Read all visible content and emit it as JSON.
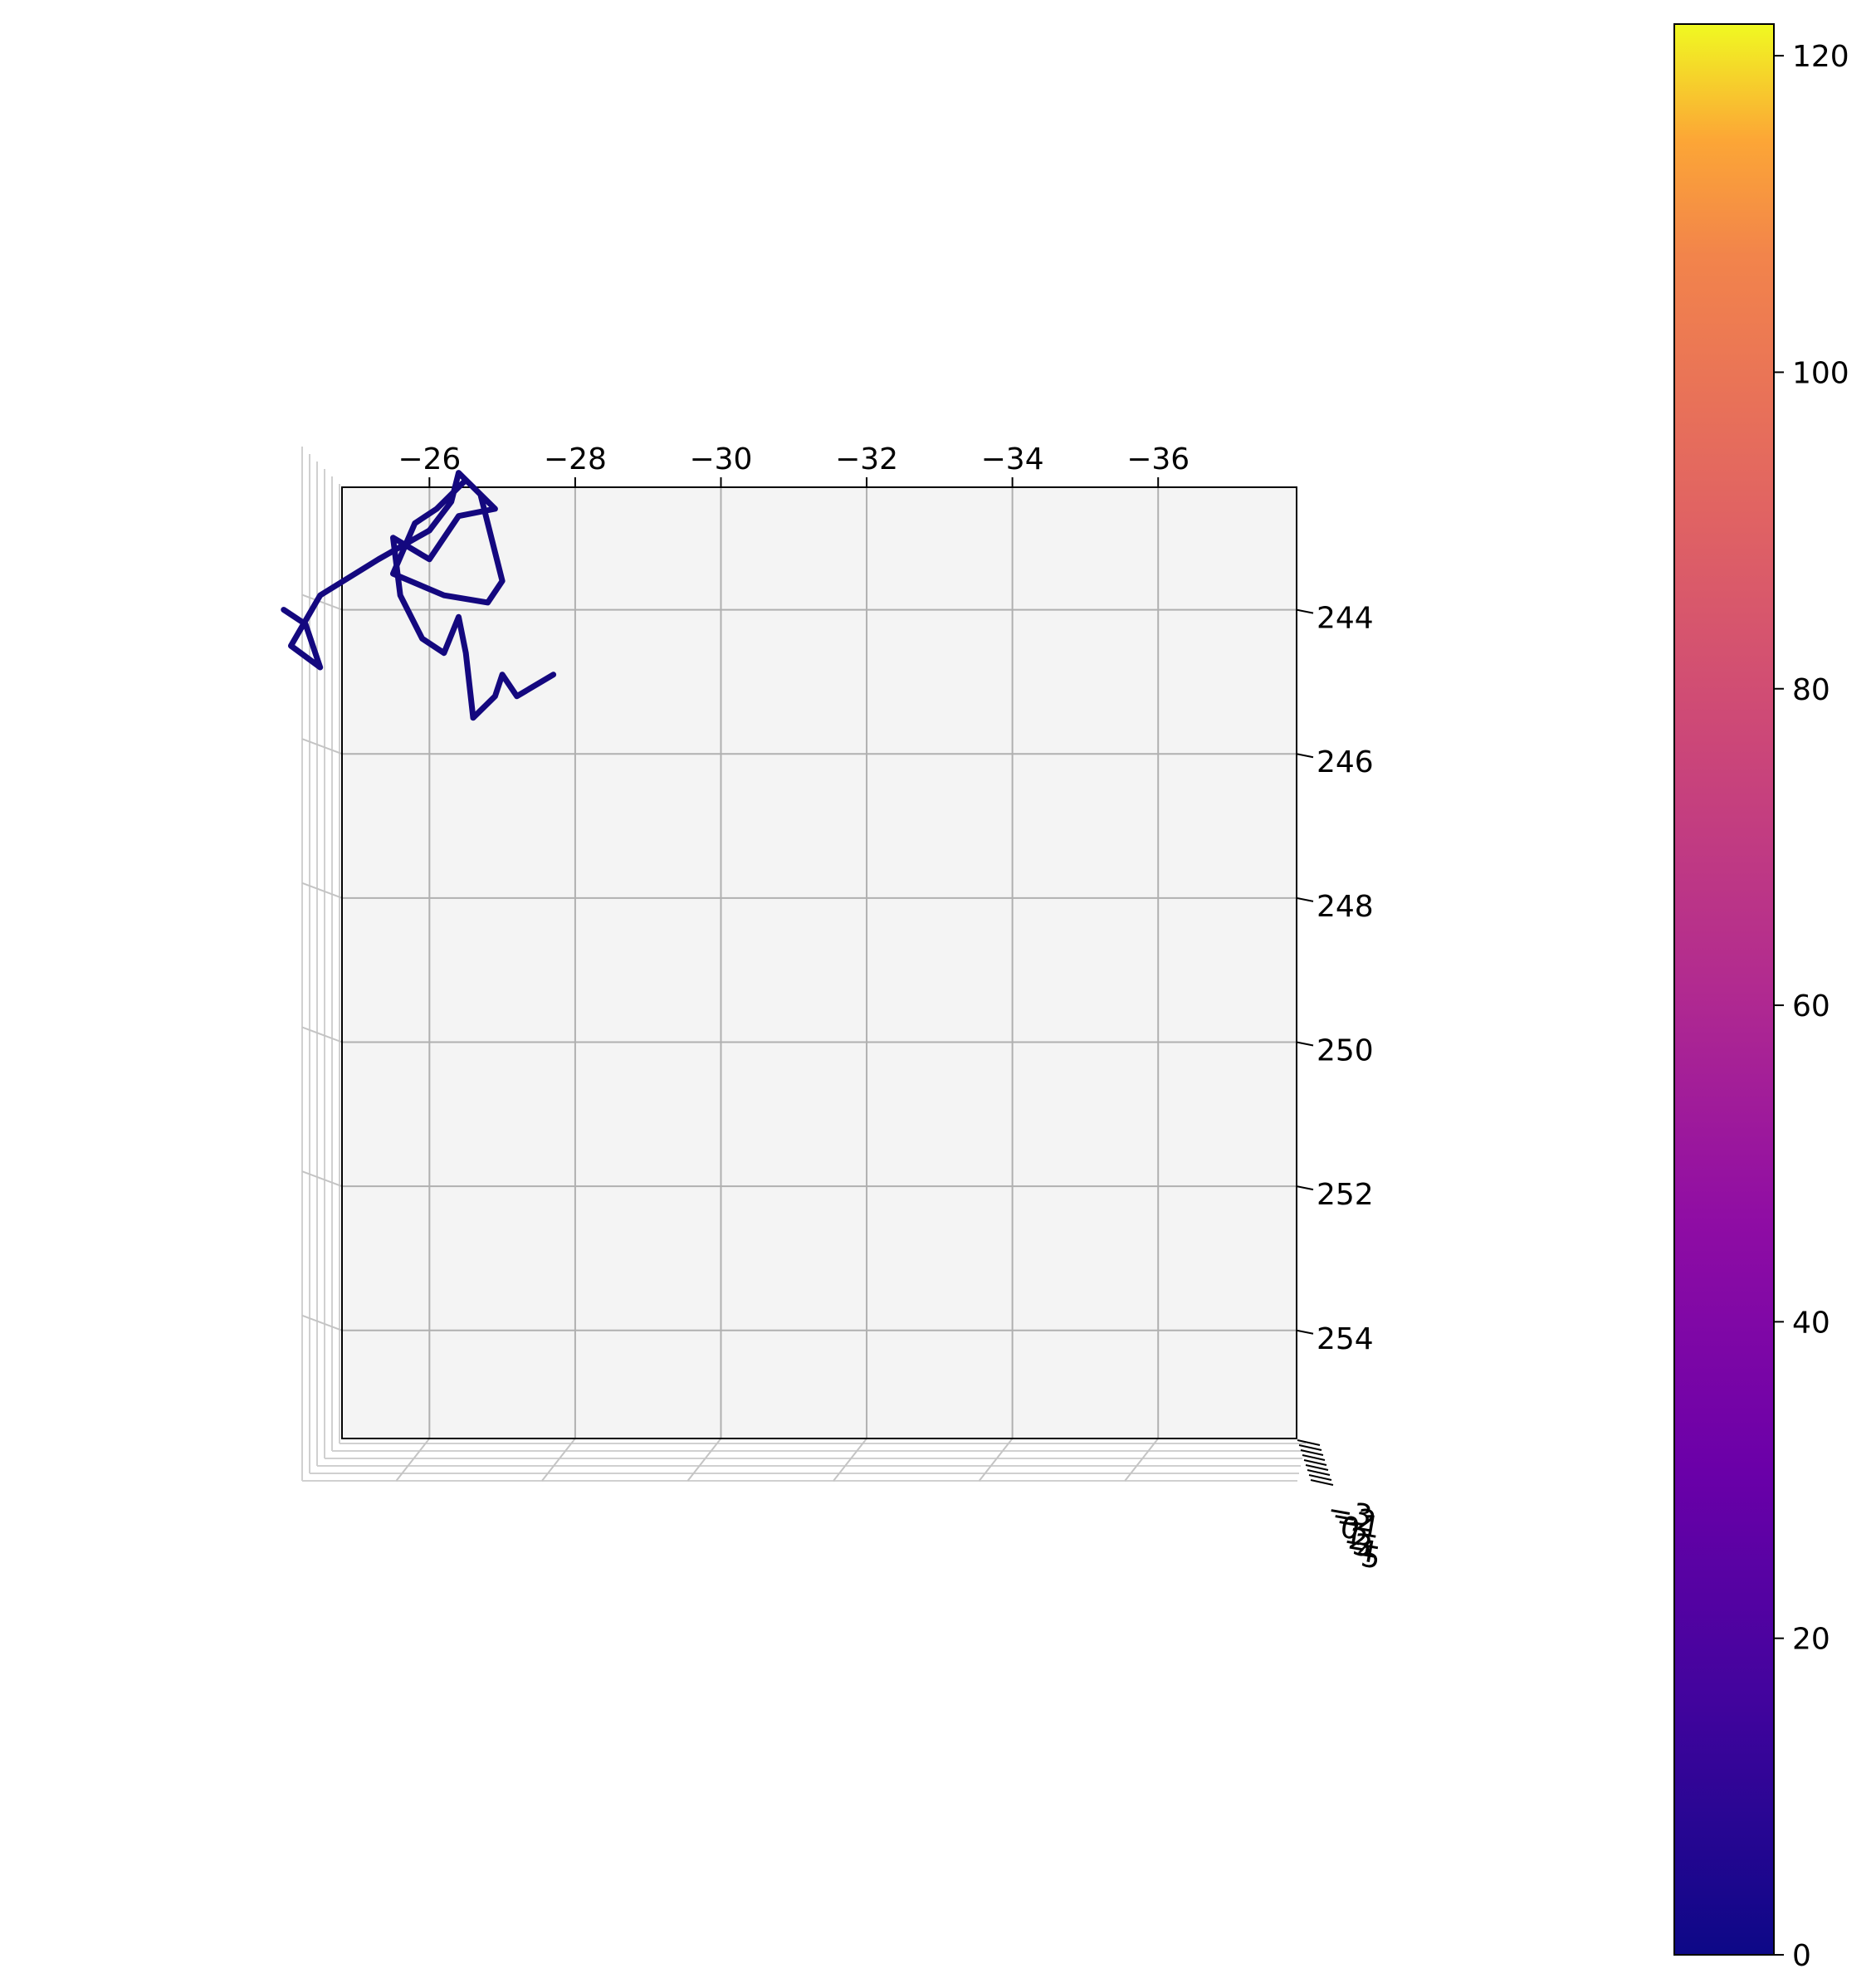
{
  "chart_data": {
    "type": "line",
    "projection": "3d",
    "title": "",
    "xlabel": "",
    "ylabel": "",
    "zlabel": "",
    "x_axis": {
      "inverted": true,
      "xlim": [
        -24.8,
        -37.9
      ],
      "ticks": [
        -26,
        -28,
        -30,
        -32,
        -34,
        -36
      ],
      "tick_labels": [
        "−26",
        "−28",
        "−30",
        "−32",
        "−34",
        "−36"
      ]
    },
    "y_axis": {
      "inverted": true,
      "ylim": [
        242.3,
        255.5
      ],
      "ticks": [
        244,
        246,
        248,
        250,
        252,
        254
      ],
      "tick_labels": [
        "244",
        "246",
        "248",
        "250",
        "252",
        "254"
      ]
    },
    "z_axis": {
      "tick_labels": [
        "−3",
        "−2",
        "−1",
        "0",
        "1",
        "2",
        "3",
        "4",
        "5"
      ],
      "note": "edge-on axis, labels overlap"
    },
    "grid": true,
    "pane_color": "#f4f4f4",
    "line_color": "#14087f",
    "colormap": "plasma",
    "colorbar": {
      "vmin": 0,
      "vmax": 122,
      "ticks": [
        0,
        20,
        40,
        60,
        80,
        100,
        120
      ],
      "tick_labels": [
        "0",
        "20",
        "40",
        "60",
        "80",
        "100",
        "120"
      ],
      "placement": "right"
    },
    "series": [
      {
        "x": [
          -27.7,
          -27.2,
          -27.0,
          -26.9,
          -26.6,
          -26.5,
          -26.4,
          -26.2,
          -25.9,
          -25.6,
          -25.5,
          -26.0,
          -26.4,
          -26.9,
          -26.5,
          -26.1,
          -25.8,
          -25.5,
          -26.2,
          -26.8,
          -27.0,
          -26.7,
          -26.4,
          -26.3,
          -26.0,
          -25.3,
          -24.5,
          -24.1,
          -24.5,
          -24.3,
          -24.0
        ],
        "y": [
          244.9,
          245.2,
          244.9,
          245.2,
          245.5,
          244.6,
          244.1,
          244.6,
          244.4,
          243.8,
          243.0,
          243.3,
          242.7,
          242.6,
          242.2,
          242.6,
          242.8,
          243.5,
          243.8,
          243.9,
          243.6,
          242.4,
          242.1,
          242.5,
          242.9,
          243.3,
          243.8,
          244.5,
          244.8,
          244.2,
          244.0
        ]
      }
    ]
  }
}
